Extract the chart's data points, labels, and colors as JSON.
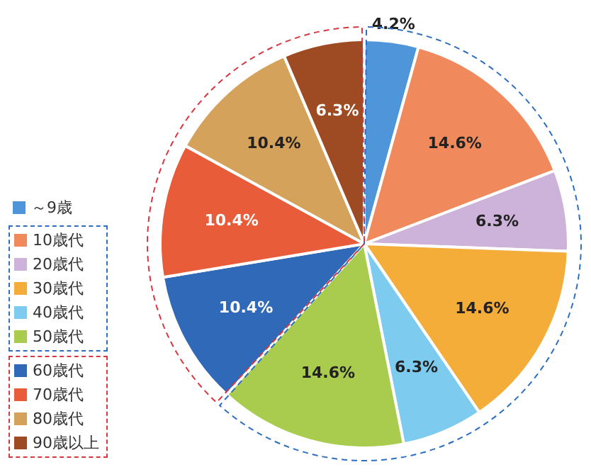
{
  "chart_data": {
    "type": "pie",
    "categories": [
      "～9歳",
      "10歳代",
      "20歳代",
      "30歳代",
      "40歳代",
      "50歳代",
      "60歳代",
      "70歳代",
      "80歳代",
      "90歳以上"
    ],
    "values": [
      4.2,
      14.6,
      6.3,
      14.6,
      6.3,
      14.6,
      10.4,
      10.4,
      10.4,
      6.3
    ],
    "colors": [
      "#4e95d9",
      "#f08a5d",
      "#cdb3d9",
      "#f5ad3a",
      "#7ecbf0",
      "#a9cc4f",
      "#3069b8",
      "#e85c3a",
      "#d4a25a",
      "#9e4a22"
    ],
    "value_labels": [
      "4.2%",
      "14.6%",
      "6.3%",
      "14.6%",
      "6.3%",
      "14.6%",
      "10.4%",
      "10.4%",
      "10.4%",
      "6.3%"
    ],
    "legend": "left"
  }
}
